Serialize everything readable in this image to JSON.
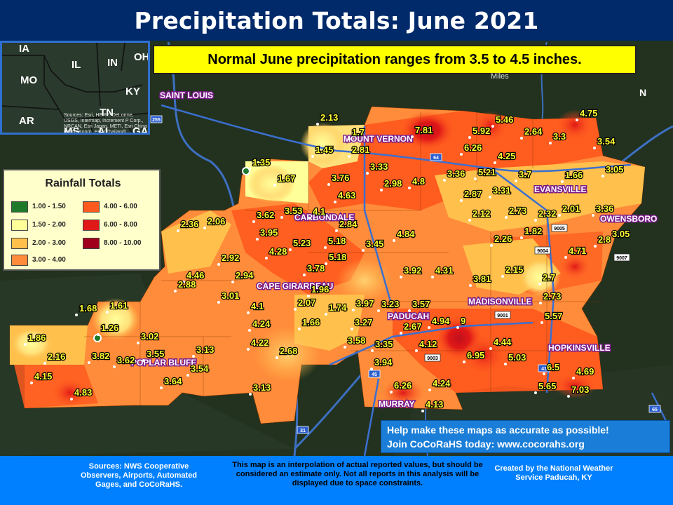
{
  "title": "Precipitation Totals: June 2021",
  "banner": "Normal June precipitation ranges from 3.5 to 4.5 inches.",
  "inset": {
    "states": [
      {
        "abbr": "IA"
      },
      {
        "abbr": "IL"
      },
      {
        "abbr": "IN"
      },
      {
        "abbr": "OH"
      },
      {
        "abbr": "MO"
      },
      {
        "abbr": "KY"
      },
      {
        "abbr": "AR"
      },
      {
        "abbr": "TN"
      },
      {
        "abbr": "MS"
      },
      {
        "abbr": "AL"
      },
      {
        "abbr": "GA"
      }
    ],
    "credit": "Sources: Esri, HERE, DeLorme, USGS, Intermap, increment P Corp., NRCAN, Esri Japan, METI, Esri China (Hong Kong), Esri (Thailand), TomTom, MapmyIndia, © OpenStreetMap contributors, and the GIS User Community"
  },
  "legend": {
    "title": "Rainfall Totals",
    "items": [
      {
        "label": "1.00 - 1.50",
        "color": "#1e7a2a"
      },
      {
        "label": "1.50 - 2.00",
        "color": "#ffff99"
      },
      {
        "label": "2.00 - 3.00",
        "color": "#ffc04c"
      },
      {
        "label": "3.00 - 4.00",
        "color": "#ff8c3a"
      },
      {
        "label": "4.00 - 6.00",
        "color": "#ff5a1e"
      },
      {
        "label": "6.00 - 8.00",
        "color": "#e01818"
      },
      {
        "label": "8.00 - 10.00",
        "color": "#a0001c"
      }
    ]
  },
  "scale_label": "Miles",
  "north_label": "N",
  "cities": [
    {
      "name": "SAINT LOUIS"
    },
    {
      "name": "MOUNT VERNON"
    },
    {
      "name": "EVANSVILLE"
    },
    {
      "name": "CARBONDALE"
    },
    {
      "name": "OWENSBORO"
    },
    {
      "name": "CAPE GIRARDEAU"
    },
    {
      "name": "MADISONVILLE"
    },
    {
      "name": "PADUCAH"
    },
    {
      "name": "HOPKINSVILLE"
    },
    {
      "name": "POPLAR BLUFF"
    },
    {
      "name": "MURRAY"
    }
  ],
  "values": [
    {
      "v": "2.13"
    },
    {
      "v": "1.7"
    },
    {
      "v": "7.81"
    },
    {
      "v": "5.46"
    },
    {
      "v": "4.75"
    },
    {
      "v": "5.92"
    },
    {
      "v": "2.64"
    },
    {
      "v": "3.3"
    },
    {
      "v": "3.54"
    },
    {
      "v": "1.45"
    },
    {
      "v": "2.81"
    },
    {
      "v": "6.26"
    },
    {
      "v": "4.25"
    },
    {
      "v": "1.35"
    },
    {
      "v": "3.33"
    },
    {
      "v": "3.36"
    },
    {
      "v": "5.21"
    },
    {
      "v": "3.7"
    },
    {
      "v": "1.66"
    },
    {
      "v": "3.05"
    },
    {
      "v": "1.67"
    },
    {
      "v": "3.76"
    },
    {
      "v": "2.98"
    },
    {
      "v": "4.8"
    },
    {
      "v": "2.87"
    },
    {
      "v": "3.31"
    },
    {
      "v": "4.63"
    },
    {
      "v": "3.62"
    },
    {
      "v": "3.53"
    },
    {
      "v": "4.1"
    },
    {
      "v": "2.12"
    },
    {
      "v": "2.73"
    },
    {
      "v": "2.32"
    },
    {
      "v": "2.01"
    },
    {
      "v": "3.36"
    },
    {
      "v": "2.36"
    },
    {
      "v": "2.06"
    },
    {
      "v": "4.84"
    },
    {
      "v": "2.84"
    },
    {
      "v": "3.95"
    },
    {
      "v": "1.82"
    },
    {
      "v": "3.05"
    },
    {
      "v": "5.23"
    },
    {
      "v": "5.18"
    },
    {
      "v": "3.45"
    },
    {
      "v": "2.26"
    },
    {
      "v": "2.8"
    },
    {
      "v": "2.92"
    },
    {
      "v": "4.28"
    },
    {
      "v": "5.18"
    },
    {
      "v": "4.71"
    },
    {
      "v": "4.46"
    },
    {
      "v": "2.94"
    },
    {
      "v": "3.78"
    },
    {
      "v": "3.92"
    },
    {
      "v": "4.31"
    },
    {
      "v": "2.15"
    },
    {
      "v": "2.88"
    },
    {
      "v": "3.81"
    },
    {
      "v": "2.7"
    },
    {
      "v": "3.01"
    },
    {
      "v": "1.96"
    },
    {
      "v": "2.73"
    },
    {
      "v": "1.68"
    },
    {
      "v": "1.61"
    },
    {
      "v": "4.1"
    },
    {
      "v": "2.07"
    },
    {
      "v": "3.97"
    },
    {
      "v": "3.23"
    },
    {
      "v": "3.57"
    },
    {
      "v": "1.74"
    },
    {
      "v": "1.26"
    },
    {
      "v": "5.57"
    },
    {
      "v": "1.86"
    },
    {
      "v": "4.24"
    },
    {
      "v": "1.66"
    },
    {
      "v": "3.27"
    },
    {
      "v": "2.67"
    },
    {
      "v": "4.94"
    },
    {
      "v": "9"
    },
    {
      "v": "3.02"
    },
    {
      "v": "4.22"
    },
    {
      "v": "3.58"
    },
    {
      "v": "3.35"
    },
    {
      "v": "4.12"
    },
    {
      "v": "4.44"
    },
    {
      "v": "3.82"
    },
    {
      "v": "3.55"
    },
    {
      "v": "2.68"
    },
    {
      "v": "3.13"
    },
    {
      "v": "2.16"
    },
    {
      "v": "3.62"
    },
    {
      "v": "3.54"
    },
    {
      "v": "6.95"
    },
    {
      "v": "5.03"
    },
    {
      "v": "3.94"
    },
    {
      "v": "6.5"
    },
    {
      "v": "4.69"
    },
    {
      "v": "4.15"
    },
    {
      "v": "3.64"
    },
    {
      "v": "4.24"
    },
    {
      "v": "6.26"
    },
    {
      "v": "5.65"
    },
    {
      "v": "7.03"
    },
    {
      "v": "4.83"
    },
    {
      "v": "3.13"
    },
    {
      "v": "4.13"
    }
  ],
  "route_shields": [
    {
      "num": "255"
    },
    {
      "num": "64"
    },
    {
      "num": "9005"
    },
    {
      "num": "9004"
    },
    {
      "num": "9007"
    },
    {
      "num": "9001"
    },
    {
      "num": "9003"
    },
    {
      "num": "45"
    },
    {
      "num": "41"
    },
    {
      "num": "31"
    },
    {
      "num": "65"
    }
  ],
  "help": {
    "line1": "Help make these maps as accurate as possible!",
    "line2": "Join CoCoRaHS today: www.cocorahs.org"
  },
  "footer": {
    "sources": "Sources: NWS Cooperative Observers, Airports, Automated Gages, and CoCoRaHS.",
    "disclaimer": "This map is an interpolation of actual reported values, but should be considered an estimate only. Not all reports in this analysis will be displayed due to space constraints.",
    "created": "Created by the National Weather Service Paducah, KY"
  }
}
